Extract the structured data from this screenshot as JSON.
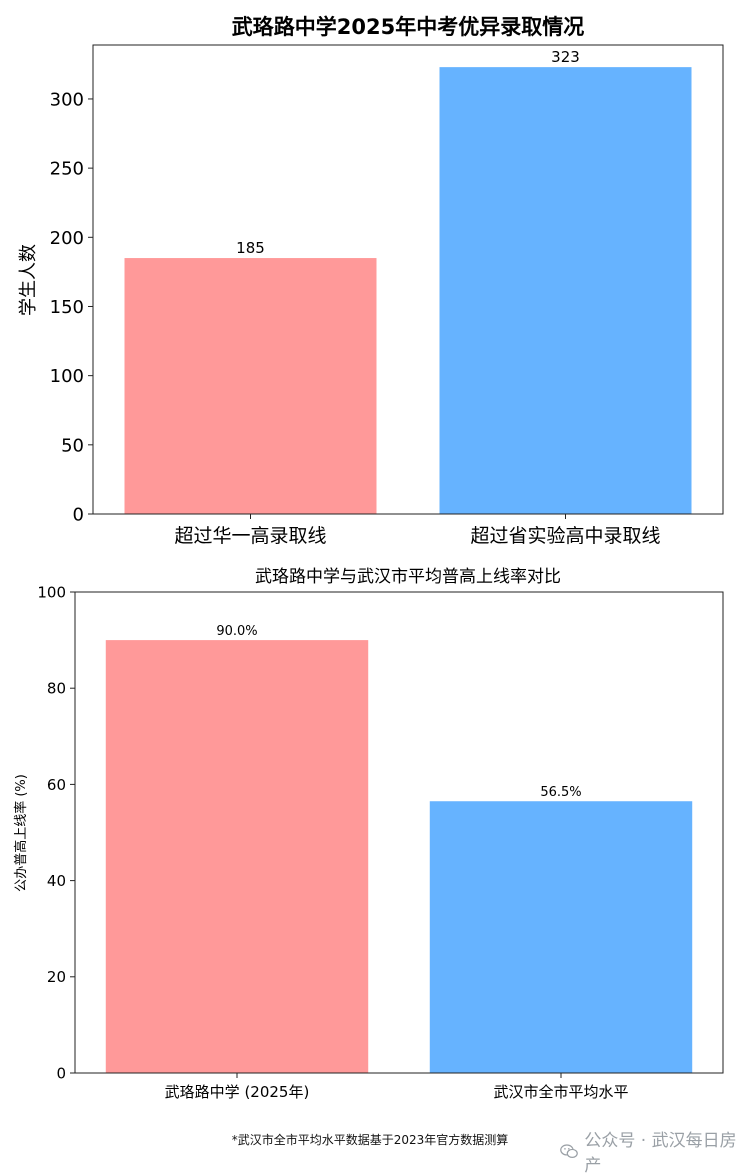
{
  "chart_data": [
    {
      "type": "bar",
      "title": "武珞路中学2025年中考优异录取情况",
      "xlabel": "",
      "ylabel": "学生人数",
      "categories": [
        "超过华一高录取线",
        "超过省实验高中录取线"
      ],
      "values": [
        185,
        323
      ],
      "value_labels": [
        "185",
        "323"
      ],
      "colors": [
        "#ff9999",
        "#66b3ff"
      ],
      "ylim": [
        0,
        339
      ],
      "yticks": [
        "0",
        "50",
        "100",
        "150",
        "200",
        "250",
        "300"
      ],
      "grid": false
    },
    {
      "type": "bar",
      "title": "武珞路中学与武汉市平均普高上线率对比",
      "xlabel": "",
      "ylabel": "公办普高上线率 (%)",
      "categories": [
        "武珞路中学 (2025年)",
        "武汉市全市平均水平"
      ],
      "values": [
        90.0,
        56.5
      ],
      "value_labels": [
        "90.0%",
        "56.5%"
      ],
      "colors": [
        "#ff9999",
        "#66b3ff"
      ],
      "ylim": [
        0,
        100
      ],
      "yticks": [
        "0",
        "20",
        "40",
        "60",
        "80",
        "100"
      ],
      "grid": false
    }
  ],
  "footnote": "*武汉市全市平均水平数据基于2023年官方数据测算",
  "watermark": {
    "icon": "wechat-icon",
    "text": "公众号 · 武汉每日房产",
    "color": "#9aa0a6"
  }
}
